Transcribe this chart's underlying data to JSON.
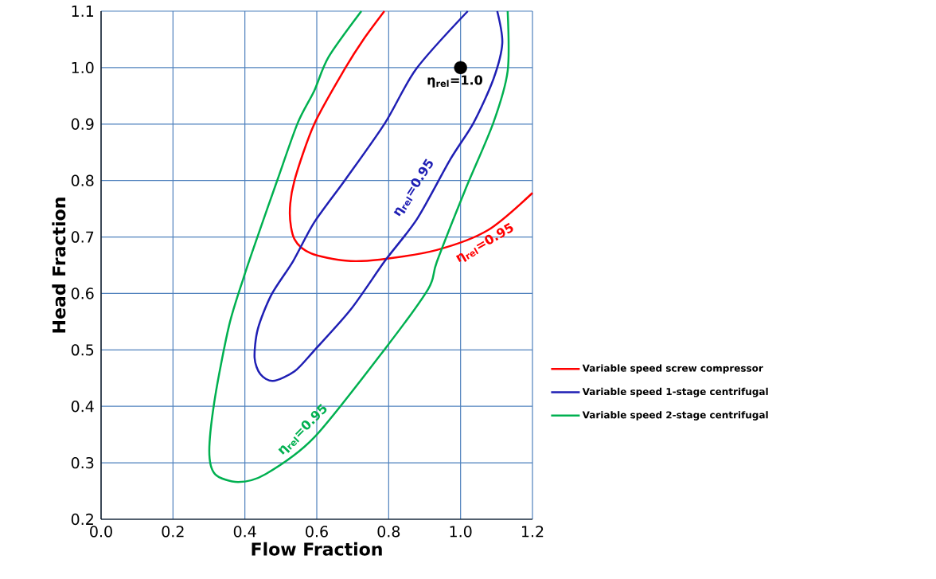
{
  "chart_data": {
    "type": "line",
    "xlabel": "Flow Fraction",
    "ylabel": "Head Fraction",
    "xlim": [
      0,
      1.2
    ],
    "ylim": [
      0.2,
      1.1
    ],
    "xticks": [
      {
        "value": 0,
        "label": "0.0"
      },
      0.2,
      0.4,
      0.6,
      0.8,
      {
        "value": 1,
        "label": "1.0"
      },
      1.2
    ],
    "yticks": [
      0.2,
      0.3,
      0.4,
      0.5,
      0.6,
      0.7,
      0.8,
      0.9,
      {
        "value": 1,
        "label": "1.0"
      },
      1.1
    ],
    "grid": true,
    "legend": "right",
    "series": [
      {
        "name": "Variable speed screw compressor",
        "color": "#ff0000",
        "x": [
          0.788,
          0.73,
          0.68,
          0.593,
          0.538,
          0.525,
          0.538,
          0.584,
          0.68,
          0.775,
          0.934,
          1.076,
          1.2
        ],
        "values": [
          1.1,
          1.05,
          1.0,
          0.9,
          0.8,
          0.742,
          0.696,
          0.671,
          0.658,
          0.66,
          0.677,
          0.712,
          0.778
        ]
      },
      {
        "name": "Variable speed 1-stage centrifugal",
        "color": "#1f1fb4",
        "x": [
          1.02,
          0.877,
          0.79,
          0.68,
          0.593,
          0.534,
          0.474,
          0.436,
          0.427,
          0.443,
          0.478,
          0.538,
          0.593,
          0.695,
          0.79,
          0.879,
          0.972,
          1.036,
          1.091,
          1.116,
          1.102
        ],
        "values": [
          1.1,
          0.998,
          0.902,
          0.802,
          0.726,
          0.657,
          0.598,
          0.537,
          0.486,
          0.457,
          0.445,
          0.462,
          0.499,
          0.572,
          0.658,
          0.732,
          0.838,
          0.902,
          0.979,
          1.043,
          1.1
        ]
      },
      {
        "name": "Variable speed 2-stage centrifugal",
        "color": "#00b050",
        "x": [
          0.724,
          0.633,
          0.593,
          0.547,
          0.491,
          0.436,
          0.396,
          0.356,
          0.317,
          0.301,
          0.317,
          0.381,
          0.458,
          0.593,
          0.79,
          0.91,
          0.934,
          1.012,
          1.091,
          1.131,
          1.131
        ],
        "values": [
          1.1,
          1.019,
          0.959,
          0.902,
          0.802,
          0.702,
          0.627,
          0.543,
          0.416,
          0.321,
          0.28,
          0.266,
          0.28,
          0.345,
          0.502,
          0.608,
          0.656,
          0.782,
          0.902,
          0.994,
          1.1
        ]
      },
      {
        "type": "scatter",
        "marker": "circle",
        "color": "#000000",
        "x": [
          1.0
        ],
        "values": [
          1.0
        ]
      }
    ],
    "annotations": [
      "η$_{rel}$=1.0",
      "η$_{rel}$=0.95",
      "η$_{rel}$=0.95",
      "η$_{rel}$=0.95"
    ]
  }
}
